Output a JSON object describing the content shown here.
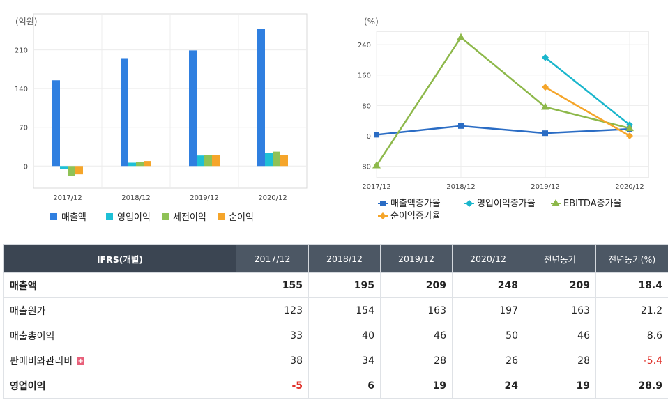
{
  "chart_data": [
    {
      "type": "bar",
      "unit_label": "(억원)",
      "categories": [
        "2017/12",
        "2018/12",
        "2019/12",
        "2020/12"
      ],
      "yticks": [
        0,
        70,
        140,
        210
      ],
      "ylim": [
        -40,
        275
      ],
      "grid": true,
      "legend_position": "bottom",
      "series": [
        {
          "name": "매출액",
          "color": "#2f7fe0",
          "values": [
            155,
            195,
            209,
            248
          ]
        },
        {
          "name": "영업이익",
          "color": "#1ec0d6",
          "values": [
            -5,
            6,
            19,
            24
          ]
        },
        {
          "name": "세전이익",
          "color": "#8fc256",
          "values": [
            -18,
            7,
            20,
            26
          ]
        },
        {
          "name": "순이익",
          "color": "#f5a52a",
          "values": [
            -15,
            9,
            20,
            20
          ]
        }
      ]
    },
    {
      "type": "line",
      "unit_label": "(%)",
      "categories": [
        "2017/12",
        "2018/12",
        "2019/12",
        "2020/12"
      ],
      "yticks": [
        -80,
        0,
        80,
        160,
        240
      ],
      "ylim": [
        -110,
        275
      ],
      "grid": true,
      "legend_position": "bottom",
      "series": [
        {
          "name": "매출액증가율",
          "color": "#2a6cc4",
          "marker": "square",
          "values": [
            3,
            26,
            7,
            18
          ]
        },
        {
          "name": "영업이익증가율",
          "color": "#1ab6cc",
          "marker": "diamond",
          "values": [
            null,
            null,
            206,
            29
          ]
        },
        {
          "name": "EBITDA증가율",
          "color": "#8db84a",
          "marker": "triangle",
          "values": [
            -78,
            259,
            76,
            20
          ]
        },
        {
          "name": "순이익증가율",
          "color": "#f5a52a",
          "marker": "diamond",
          "values": [
            null,
            null,
            128,
            0
          ]
        }
      ]
    }
  ],
  "table": {
    "headers": [
      "IFRS(개별)",
      "2017/12",
      "2018/12",
      "2019/12",
      "2020/12",
      "전년동기",
      "전년동기(%)"
    ],
    "rows": [
      {
        "label": "매출액",
        "values": [
          "155",
          "195",
          "209",
          "248",
          "209",
          "18.4"
        ],
        "bold": true,
        "expand": false
      },
      {
        "label": "매출원가",
        "values": [
          "123",
          "154",
          "163",
          "197",
          "163",
          "21.2"
        ],
        "bold": false,
        "expand": false
      },
      {
        "label": "매출총이익",
        "values": [
          "33",
          "40",
          "46",
          "50",
          "46",
          "8.6"
        ],
        "bold": false,
        "expand": false
      },
      {
        "label": "판매비와관리비",
        "values": [
          "38",
          "34",
          "28",
          "26",
          "28",
          "-5.4"
        ],
        "bold": false,
        "expand": true
      },
      {
        "label": "영업이익",
        "values": [
          "-5",
          "6",
          "19",
          "24",
          "19",
          "28.9"
        ],
        "bold": true,
        "expand": false
      }
    ],
    "expand_icon": "plus-icon",
    "negative_color": "#e0312a"
  }
}
